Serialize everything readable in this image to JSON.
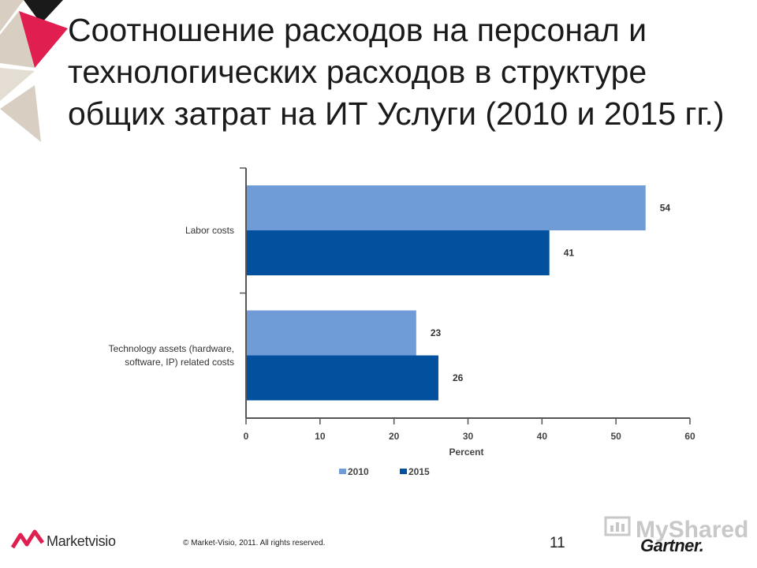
{
  "slide": {
    "title_lines": [
      "Соотношение расходов на персонал и",
      "технологических расходов в структуре",
      "общих затрат на ИТ Услуги (2010 и 2015 гг.)"
    ],
    "copyright": "© Market-Visio, 2011. All rights reserved.",
    "page_number": "11",
    "brand_left": "Marketvisio",
    "brand_right": "Gartner.",
    "watermark": "MyShared"
  },
  "colors": {
    "series_2010": "#6f9bd6",
    "series_2015": "#03509e",
    "deco_red": "#e01e4f",
    "deco_beige": "#d8cfc2",
    "deco_black": "#1a1a1a"
  },
  "chart_data": {
    "type": "bar",
    "orientation": "horizontal",
    "categories": [
      "Labor costs",
      "Technology assets (hardware, software, IP) related costs"
    ],
    "category_lines": [
      [
        "Labor costs"
      ],
      [
        "Technology assets (hardware,",
        "software, IP) related costs"
      ]
    ],
    "series": [
      {
        "name": "2010",
        "values": [
          54,
          23
        ]
      },
      {
        "name": "2015",
        "values": [
          41,
          26
        ]
      }
    ],
    "xlabel": "Percent",
    "xlim": [
      0,
      60
    ],
    "xticks": [
      0,
      10,
      20,
      30,
      40,
      50,
      60
    ],
    "grid": false,
    "legend_position": "bottom"
  }
}
